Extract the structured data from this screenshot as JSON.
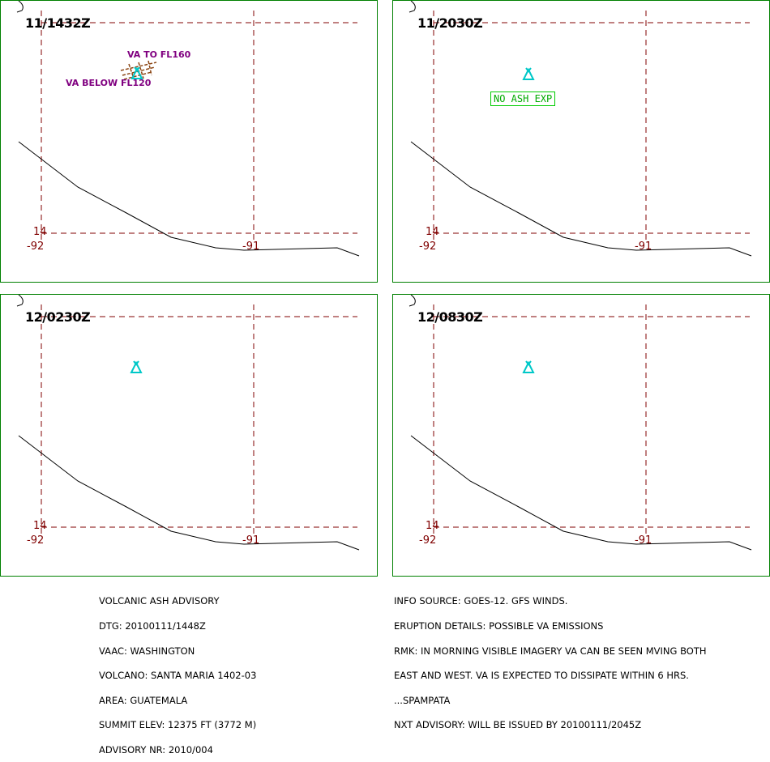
{
  "panels": [
    {
      "time": "11/1432Z",
      "va_upper": "VA TO FL160",
      "va_lower": "VA BELOW FL120",
      "no_ash": ""
    },
    {
      "time": "11/2030Z",
      "va_upper": "",
      "va_lower": "",
      "no_ash": "NO ASH EXP"
    },
    {
      "time": "12/0230Z",
      "va_upper": "",
      "va_lower": "",
      "no_ash": ""
    },
    {
      "time": "12/0830Z",
      "va_upper": "",
      "va_lower": "",
      "no_ash": ""
    }
  ],
  "grid_labels": {
    "lat": "14",
    "lon_west": "-92",
    "lon_east": "-91"
  },
  "advisory_left": [
    "VOLCANIC ASH ADVISORY",
    "DTG: 20100111/1448Z",
    "VAAC: WASHINGTON",
    "VOLCANO: SANTA MARIA 1402-03",
    "AREA: GUATEMALA",
    "SUMMIT ELEV: 12375 FT (3772 M)",
    "ADVISORY NR: 2010/004"
  ],
  "advisory_right": [
    "INFO SOURCE: GOES-12. GFS WINDS.",
    "ERUPTION DETAILS: POSSIBLE VA EMISSIONS",
    "RMK: IN MORNING VISIBLE IMAGERY VA CAN BE SEEN MVING BOTH",
    "EAST AND WEST. VA IS EXPECTED TO DISSIPATE WITHIN 6 HRS.",
    "...SPAMPATA",
    "NXT ADVISORY: WILL BE ISSUED BY 20100111/2045Z"
  ],
  "colors": {
    "frame": "#008000",
    "grid": "#800000",
    "volcano": "#00c8c8",
    "ash_text": "#800080",
    "no_ash": "#00aa00",
    "ash_hatch": "#8b4513"
  }
}
